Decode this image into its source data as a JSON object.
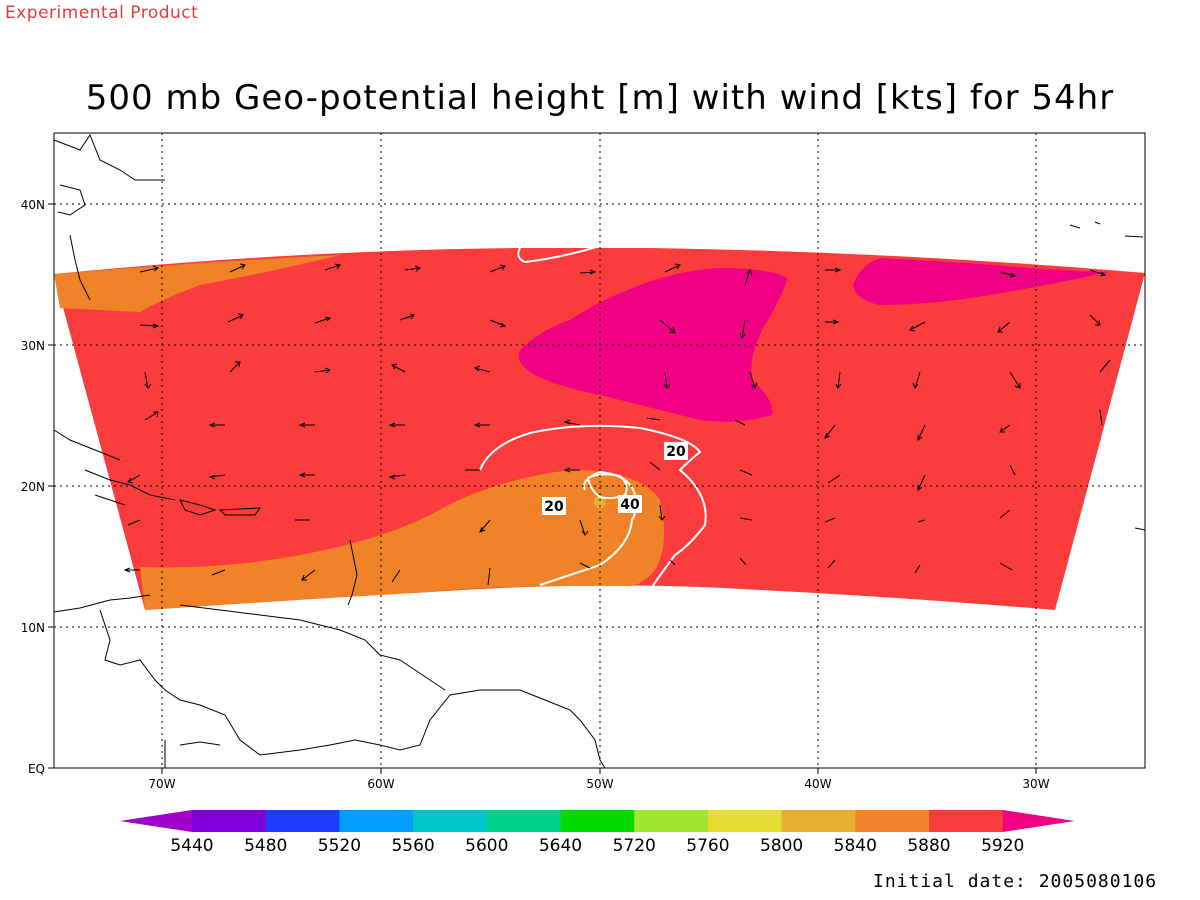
{
  "header": {
    "product_label": "Experimental Product",
    "title": "500 mb Geo-potential height [m] with wind [kts] for 54hr"
  },
  "map": {
    "lat_ticks": [
      "EQ",
      "10N",
      "20N",
      "30N",
      "40N"
    ],
    "lon_ticks": [
      "70W",
      "60W",
      "50W",
      "40W",
      "30W"
    ],
    "contour_labels": [
      "20",
      "20",
      "40"
    ]
  },
  "legend": {
    "values": [
      "5440",
      "5480",
      "5520",
      "5560",
      "5600",
      "5640",
      "5720",
      "5760",
      "5800",
      "5840",
      "5880",
      "5920"
    ],
    "colors": [
      "#a000c8",
      "#8200dc",
      "#1e3cff",
      "#00a0ff",
      "#00c8c8",
      "#00d28c",
      "#00dc00",
      "#a0e632",
      "#e6dc32",
      "#e6af2d",
      "#f08228",
      "#fa3c3c",
      "#f00082"
    ]
  },
  "footer": {
    "initial_date": "Initial date: 2005080106"
  }
}
